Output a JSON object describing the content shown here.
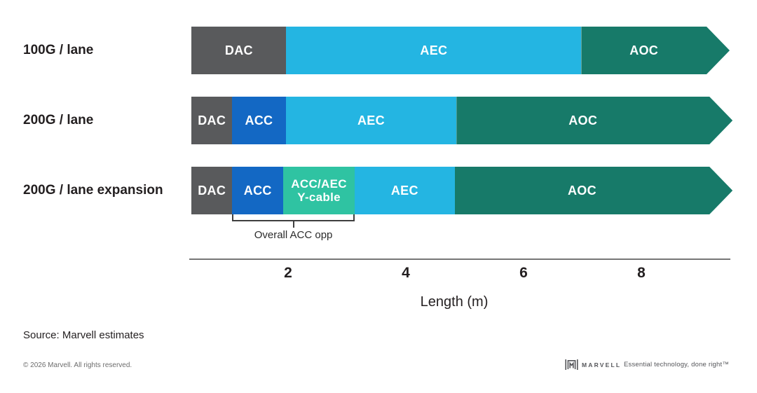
{
  "chart_data": {
    "type": "bar",
    "subtype": "horizontal-stacked-arrow-bars",
    "title": "",
    "xlabel": "Length (m)",
    "axis": {
      "ticks": [
        2,
        4,
        6,
        8
      ],
      "unit": "m",
      "range_m": [
        0,
        9.6
      ],
      "grid": false
    },
    "legend": "labels drawn inside segments",
    "colors": {
      "DAC": "#595a5c",
      "ACC": "#1368c4",
      "ACC/AEC Y-cable": "#2fc3a2",
      "AEC": "#24b5e2",
      "AOC": "#177a69"
    },
    "rows": [
      {
        "label": "100G / lane",
        "segments": [
          {
            "label": "DAC",
            "color": "#595a5c",
            "start_m": 0.36,
            "end_m": 1.97
          },
          {
            "label": "AEC",
            "color": "#24b5e2",
            "start_m": 1.97,
            "end_m": 6.98
          },
          {
            "label": "AOC",
            "color": "#177a69",
            "start_m": 6.98,
            "end_m": 9.5,
            "arrow": true
          }
        ]
      },
      {
        "label": "200G / lane",
        "segments": [
          {
            "label": "DAC",
            "color": "#595a5c",
            "start_m": 0.36,
            "end_m": 1.05
          },
          {
            "label": "ACC",
            "color": "#1368c4",
            "start_m": 1.05,
            "end_m": 1.96
          },
          {
            "label": "AEC",
            "color": "#24b5e2",
            "start_m": 1.96,
            "end_m": 4.86
          },
          {
            "label": "AOC",
            "color": "#177a69",
            "start_m": 4.86,
            "end_m": 9.55,
            "arrow": true
          }
        ]
      },
      {
        "label": "200G / lane expansion",
        "segments": [
          {
            "label": "DAC",
            "color": "#595a5c",
            "start_m": 0.36,
            "end_m": 1.05
          },
          {
            "label": "ACC",
            "color": "#1368c4",
            "start_m": 1.05,
            "end_m": 1.92
          },
          {
            "label": "ACC/AEC\nY-cable",
            "color": "#2fc3a2",
            "start_m": 1.92,
            "end_m": 3.13,
            "small": true
          },
          {
            "label": "AEC",
            "color": "#24b5e2",
            "start_m": 3.13,
            "end_m": 4.83
          },
          {
            "label": "AOC",
            "color": "#177a69",
            "start_m": 4.83,
            "end_m": 9.55,
            "arrow": true
          }
        ]
      }
    ],
    "annotation": {
      "label": "Overall ACC opp",
      "row_index": 2,
      "start_m": 1.05,
      "end_m": 3.13
    }
  },
  "footer": {
    "source": "Source: Marvell estimates",
    "copyright": "© 2026 Marvell. All rights reserved.",
    "wordmark": "MARVELL",
    "tagline": "Essential technology, done right™"
  }
}
